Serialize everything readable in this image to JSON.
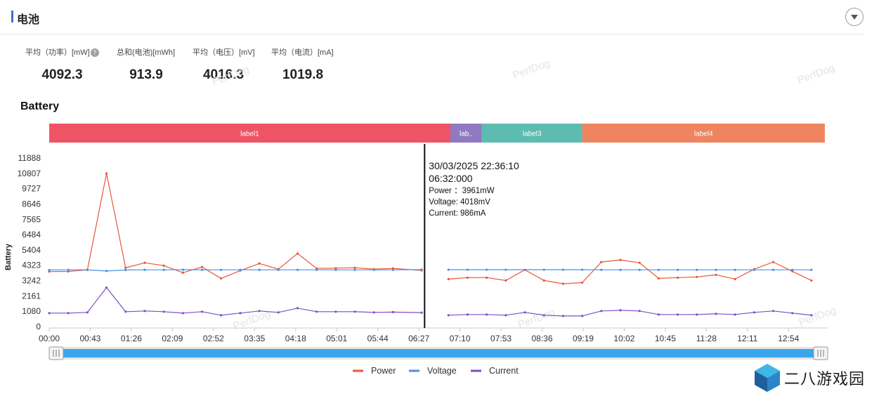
{
  "header": {
    "title": "电池"
  },
  "stats": [
    {
      "label": "平均（功率）[mW]",
      "value": "4092.3",
      "has_help": true
    },
    {
      "label": "总和(电池)[mWh]",
      "value": "913.9"
    },
    {
      "label": "平均（电压）[mV]",
      "value": "4016.3"
    },
    {
      "label": "平均（电流）[mA]",
      "value": "1019.8"
    }
  ],
  "watermark": "PerfDog",
  "brand": "二八游戏园",
  "icons": {
    "collapse": "chevron-down-icon",
    "help": "question-icon"
  },
  "chart_data": {
    "type": "line",
    "title": "Battery",
    "ylabel": "Battery",
    "ylim": [
      0,
      11888
    ],
    "y_ticks": [
      "0",
      "1080",
      "2161",
      "3242",
      "4323",
      "5404",
      "6484",
      "7565",
      "8646",
      "9727",
      "10807",
      "11888"
    ],
    "x_ticks": [
      "00:00",
      "00:43",
      "01:26",
      "02:09",
      "02:52",
      "03:35",
      "04:18",
      "05:01",
      "05:44",
      "06:27",
      "07:10",
      "07:53",
      "08:36",
      "09:19",
      "10:02",
      "10:45",
      "11:28",
      "12:11",
      "12:54"
    ],
    "xlim": [
      0,
      815
    ],
    "labels": [
      {
        "text": "label1",
        "start": 0,
        "end": 420,
        "color": "#ef5466"
      },
      {
        "text": "lab..",
        "start": 420,
        "end": 453,
        "color": "#9179c2"
      },
      {
        "text": "label3",
        "start": 453,
        "end": 558,
        "color": "#5dbcb0"
      },
      {
        "text": "label4",
        "start": 558,
        "end": 812,
        "color": "#ee8460"
      }
    ],
    "segments": [
      {
        "x": [
          0,
          20,
          40,
          60,
          80,
          100,
          120,
          140,
          160,
          180,
          200,
          220,
          240,
          260,
          280,
          300,
          320,
          340,
          360,
          390
        ]
      },
      {
        "x": [
          418,
          438,
          458,
          478,
          498,
          518,
          538,
          558,
          578,
          598,
          618,
          638,
          658,
          678,
          698,
          718,
          738,
          758,
          778,
          798
        ]
      }
    ],
    "series": [
      {
        "name": "Power",
        "color": "#e8563a",
        "values": [
          [
            3880,
            3890,
            4000,
            10800,
            4150,
            4500,
            4300,
            3800,
            4200,
            3400,
            3950,
            4450,
            4050,
            5150,
            4100,
            4120,
            4150,
            4050,
            4100,
            3961
          ],
          [
            3350,
            3450,
            3450,
            3250,
            4000,
            3250,
            3020,
            3100,
            4550,
            4700,
            4500,
            3400,
            3450,
            3500,
            3650,
            3350,
            4050,
            4550,
            3900,
            3250
          ]
        ]
      },
      {
        "name": "Voltage",
        "color": "#4a90e2",
        "values": [
          [
            3990,
            4000,
            4000,
            3920,
            3990,
            4000,
            4000,
            4010,
            4000,
            4000,
            4000,
            4000,
            4000,
            4000,
            4000,
            4000,
            4000,
            4000,
            4000,
            4018
          ],
          [
            4010,
            4010,
            4010,
            4010,
            4010,
            4010,
            4010,
            4010,
            4000,
            4000,
            4000,
            4000,
            4000,
            4000,
            4000,
            4000,
            4000,
            4000,
            4000,
            4000
          ]
        ]
      },
      {
        "name": "Current",
        "color": "#7b4fc9",
        "values": [
          [
            950,
            950,
            1000,
            2750,
            1050,
            1100,
            1050,
            950,
            1050,
            800,
            950,
            1100,
            1000,
            1300,
            1050,
            1050,
            1050,
            1000,
            1020,
            986
          ],
          [
            800,
            850,
            850,
            800,
            1000,
            800,
            750,
            750,
            1100,
            1150,
            1100,
            850,
            850,
            850,
            900,
            850,
            1000,
            1100,
            950,
            800
          ]
        ]
      }
    ],
    "tooltip": {
      "x": 393,
      "date": "30/03/2025 22:36:10",
      "time": "06:32:000",
      "lines": [
        "Power ：3961mW",
        "Voltage: 4018mV",
        "Current: 986mA"
      ]
    },
    "legend_position": "bottom-center",
    "grid": false
  }
}
